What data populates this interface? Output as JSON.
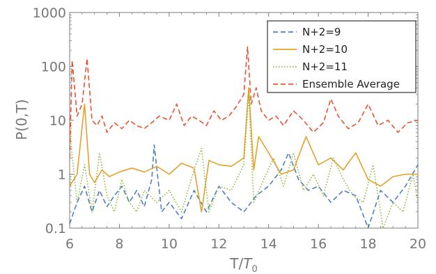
{
  "chart_data": {
    "type": "line",
    "ylabel": "P(0,T)",
    "xlabel": {
      "main": "T/",
      "var": "T",
      "sub": "0"
    },
    "xlim": [
      6,
      20
    ],
    "ylim": [
      0.1,
      1000
    ],
    "yscale": "log",
    "grid": false,
    "legend_position": "top-right",
    "x_ticks": [
      "6",
      "8",
      "10",
      "12",
      "14",
      "16",
      "18",
      "20"
    ],
    "y_ticks": [
      "0.1",
      "1",
      "10",
      "100",
      "1000"
    ],
    "series": [
      {
        "name": "N+2=9",
        "color": "#4f7fc0",
        "dash": "dashed",
        "x": [
          6.0,
          6.3,
          6.6,
          6.9,
          7.2,
          7.5,
          7.8,
          8.1,
          8.4,
          8.7,
          9.0,
          9.3,
          9.4,
          9.7,
          10.0,
          10.5,
          11.0,
          11.5,
          12.0,
          12.5,
          13.0,
          13.5,
          14.0,
          14.5,
          14.8,
          15.2,
          15.6,
          16.0,
          16.5,
          17.0,
          17.5,
          18.0,
          18.5,
          19.0,
          19.5,
          20.0
        ],
        "y": [
          0.12,
          0.3,
          0.6,
          0.2,
          0.5,
          0.25,
          0.4,
          0.6,
          0.3,
          0.5,
          0.25,
          0.8,
          3.5,
          0.2,
          0.3,
          0.15,
          0.5,
          0.2,
          0.6,
          0.3,
          0.2,
          0.4,
          0.6,
          1.2,
          2.5,
          0.8,
          0.5,
          0.6,
          0.3,
          0.5,
          0.4,
          0.1,
          0.5,
          0.3,
          0.6,
          1.5
        ]
      },
      {
        "name": "N+2=10",
        "color": "#e6a02a",
        "dash": "solid",
        "x": [
          6.0,
          6.3,
          6.6,
          6.8,
          7.0,
          7.3,
          7.6,
          8.0,
          8.5,
          9.0,
          9.5,
          10.0,
          10.5,
          11.0,
          11.3,
          11.6,
          12.0,
          12.5,
          13.0,
          13.2,
          13.4,
          13.6,
          14.0,
          14.5,
          15.0,
          15.5,
          16.0,
          16.5,
          17.0,
          17.5,
          18.0,
          18.5,
          19.0,
          19.5,
          20.0
        ],
        "y": [
          0.6,
          1.0,
          20.0,
          1.0,
          0.7,
          1.2,
          0.9,
          1.1,
          1.3,
          1.1,
          1.4,
          1.0,
          1.6,
          1.3,
          0.2,
          1.8,
          1.5,
          1.4,
          2.0,
          40.0,
          1.2,
          5.0,
          2.5,
          1.0,
          1.2,
          5.0,
          1.5,
          2.0,
          1.2,
          2.5,
          0.8,
          0.6,
          0.9,
          1.0,
          1.0
        ]
      },
      {
        "name": "N+2=11",
        "color": "#8bb83a",
        "dash": "dotted",
        "x": [
          6.0,
          6.3,
          6.6,
          6.9,
          7.2,
          7.5,
          7.8,
          8.1,
          8.4,
          8.7,
          9.0,
          9.5,
          10.0,
          10.5,
          11.0,
          11.3,
          11.6,
          12.0,
          12.5,
          13.0,
          13.2,
          13.4,
          13.8,
          14.2,
          14.6,
          15.0,
          15.4,
          15.8,
          16.2,
          16.6,
          17.0,
          17.4,
          17.8,
          18.2,
          18.6,
          19.0,
          19.4,
          19.8,
          20.0
        ],
        "y": [
          6.0,
          0.3,
          1.5,
          0.2,
          2.5,
          0.4,
          0.2,
          0.8,
          0.3,
          0.2,
          0.5,
          0.3,
          0.5,
          0.2,
          1.2,
          3.0,
          0.2,
          0.6,
          0.5,
          1.5,
          30.0,
          0.3,
          0.8,
          2.0,
          0.6,
          2.5,
          0.5,
          1.0,
          0.4,
          2.0,
          0.8,
          0.4,
          0.3,
          1.5,
          0.1,
          0.3,
          0.2,
          1.0,
          0.3
        ]
      },
      {
        "name": "Ensemble Average",
        "color": "#e8532f",
        "dash": "dashed",
        "x": [
          6.0,
          6.1,
          6.3,
          6.5,
          6.7,
          6.9,
          7.1,
          7.3,
          7.5,
          7.8,
          8.1,
          8.4,
          8.7,
          9.0,
          9.3,
          9.6,
          10.0,
          10.3,
          10.6,
          10.9,
          11.2,
          11.5,
          11.8,
          12.1,
          12.4,
          12.7,
          13.0,
          13.15,
          13.3,
          13.5,
          13.7,
          14.0,
          14.3,
          14.6,
          15.0,
          15.4,
          15.8,
          16.2,
          16.5,
          16.8,
          17.2,
          17.6,
          18.0,
          18.4,
          18.8,
          19.2,
          19.6,
          20.0
        ],
        "y": [
          2.0,
          130.0,
          12.0,
          20.0,
          140.0,
          10.0,
          8.0,
          12.0,
          6.0,
          9.0,
          7.0,
          10.0,
          8.0,
          7.0,
          9.0,
          12.0,
          10.0,
          20.0,
          8.0,
          12.0,
          10.0,
          8.0,
          15.0,
          10.0,
          12.0,
          18.0,
          30.0,
          230.0,
          20.0,
          40.0,
          15.0,
          10.0,
          12.0,
          8.0,
          15.0,
          10.0,
          6.0,
          9.0,
          25.0,
          12.0,
          7.0,
          9.0,
          20.0,
          8.0,
          10.0,
          6.0,
          9.0,
          10.0
        ]
      }
    ]
  }
}
